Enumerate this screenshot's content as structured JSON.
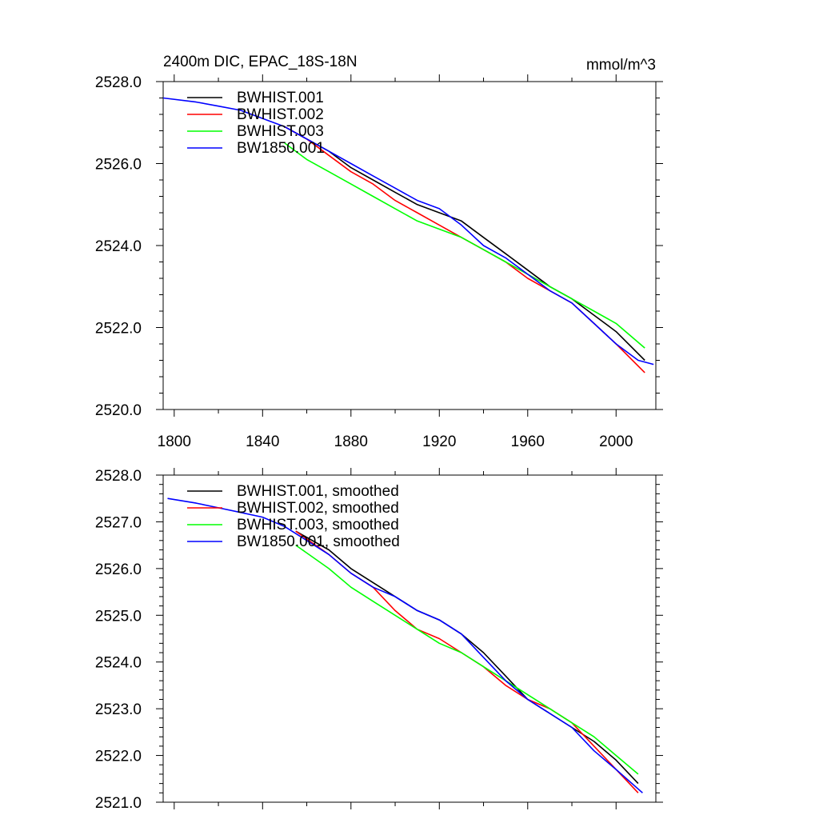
{
  "title_left": "2400m DIC, EPAC_18S-18N",
  "title_right": "mmol/m^3",
  "colors": {
    "BWHIST.001": "#000000",
    "BWHIST.002": "#ff0000",
    "BWHIST.003": "#00ff00",
    "BW1850.001": "#0000ff"
  },
  "chart_data": [
    {
      "type": "line",
      "title": "2400m DIC, EPAC_18S-18N",
      "units": "mmol/m^3",
      "xlim": [
        1795,
        2018
      ],
      "ylim": [
        2520.0,
        2528.0
      ],
      "x_ticks": [
        1800,
        1840,
        1880,
        1920,
        1960,
        2000
      ],
      "x_tick_labels": [
        "1800",
        "1840",
        "1880",
        "1920",
        "1960",
        "2000"
      ],
      "y_ticks": [
        2520.0,
        2522.0,
        2524.0,
        2526.0,
        2528.0
      ],
      "y_tick_labels": [
        "2520.0",
        "2522.0",
        "2524.0",
        "2526.0",
        "2528.0"
      ],
      "legend_position": "top-left",
      "grid": false,
      "series": [
        {
          "name": "BWHIST.001",
          "x": [
            1850,
            1860,
            1870,
            1880,
            1890,
            1900,
            1910,
            1920,
            1930,
            1940,
            1950,
            1960,
            1970,
            1980,
            1990,
            2000,
            2013
          ],
          "values": [
            2526.9,
            2526.6,
            2526.3,
            2525.9,
            2525.6,
            2525.3,
            2525.0,
            2524.8,
            2524.6,
            2524.2,
            2523.8,
            2523.4,
            2523.0,
            2522.7,
            2522.3,
            2521.9,
            2521.2
          ]
        },
        {
          "name": "BWHIST.002",
          "x": [
            1850,
            1860,
            1870,
            1880,
            1890,
            1900,
            1910,
            1920,
            1930,
            1940,
            1950,
            1960,
            1970,
            1980,
            1990,
            2000,
            2013
          ],
          "values": [
            2526.9,
            2526.6,
            2526.2,
            2525.8,
            2525.5,
            2525.1,
            2524.8,
            2524.5,
            2524.2,
            2523.9,
            2523.6,
            2523.2,
            2522.9,
            2522.6,
            2522.1,
            2521.6,
            2520.9
          ]
        },
        {
          "name": "BWHIST.003",
          "x": [
            1850,
            1860,
            1870,
            1880,
            1890,
            1900,
            1910,
            1920,
            1930,
            1940,
            1950,
            1960,
            1970,
            1980,
            1990,
            2000,
            2013
          ],
          "values": [
            2526.5,
            2526.1,
            2525.8,
            2525.5,
            2525.2,
            2524.9,
            2524.6,
            2524.4,
            2524.2,
            2523.9,
            2523.6,
            2523.3,
            2523.0,
            2522.7,
            2522.4,
            2522.1,
            2521.5
          ]
        },
        {
          "name": "BW1850.001",
          "x": [
            1795,
            1810,
            1820,
            1830,
            1840,
            1850,
            1860,
            1870,
            1880,
            1890,
            1900,
            1910,
            1920,
            1930,
            1940,
            1950,
            1960,
            1970,
            1980,
            1990,
            2000,
            2010,
            2017
          ],
          "values": [
            2527.6,
            2527.5,
            2527.4,
            2527.3,
            2527.1,
            2526.9,
            2526.6,
            2526.3,
            2526.0,
            2525.7,
            2525.4,
            2525.1,
            2524.9,
            2524.5,
            2524.0,
            2523.7,
            2523.3,
            2522.9,
            2522.6,
            2522.1,
            2521.6,
            2521.2,
            2521.1
          ]
        }
      ]
    },
    {
      "type": "line",
      "xlim": [
        1795,
        2018
      ],
      "ylim": [
        2521.0,
        2528.0
      ],
      "x_ticks": [
        1800,
        1840,
        1880,
        1920,
        1960,
        2000
      ],
      "y_ticks": [
        2521.0,
        2522.0,
        2523.0,
        2524.0,
        2525.0,
        2526.0,
        2527.0,
        2528.0
      ],
      "y_tick_labels": [
        "2521.0",
        "2522.0",
        "2523.0",
        "2524.0",
        "2525.0",
        "2526.0",
        "2527.0",
        "2528.0"
      ],
      "legend_position": "top-left",
      "grid": false,
      "series": [
        {
          "name": "BWHIST.001, smoothed",
          "x": [
            1855,
            1870,
            1880,
            1890,
            1900,
            1910,
            1920,
            1930,
            1940,
            1950,
            1960,
            1970,
            1980,
            1990,
            2000,
            2010
          ],
          "values": [
            2526.8,
            2526.4,
            2526.0,
            2525.7,
            2525.4,
            2525.1,
            2524.9,
            2524.6,
            2524.2,
            2523.7,
            2523.2,
            2522.9,
            2522.6,
            2522.3,
            2521.9,
            2521.4
          ]
        },
        {
          "name": "BWHIST.002, smoothed",
          "x": [
            1855,
            1870,
            1880,
            1890,
            1900,
            1910,
            1920,
            1930,
            1940,
            1950,
            1960,
            1970,
            1980,
            1990,
            2000,
            2010
          ],
          "values": [
            2526.8,
            2526.3,
            2525.9,
            2525.6,
            2525.1,
            2524.7,
            2524.5,
            2524.2,
            2523.9,
            2523.5,
            2523.2,
            2523.0,
            2522.7,
            2522.2,
            2521.7,
            2521.2
          ]
        },
        {
          "name": "BWHIST.003, smoothed",
          "x": [
            1855,
            1870,
            1880,
            1890,
            1900,
            1910,
            1920,
            1930,
            1940,
            1950,
            1960,
            1970,
            1980,
            1990,
            2000,
            2010
          ],
          "values": [
            2526.5,
            2526.0,
            2525.6,
            2525.3,
            2525.0,
            2524.7,
            2524.4,
            2524.2,
            2523.9,
            2523.6,
            2523.3,
            2523.0,
            2522.7,
            2522.4,
            2522.0,
            2521.6
          ]
        },
        {
          "name": "BW1850.001, smoothed",
          "x": [
            1797,
            1810,
            1820,
            1830,
            1840,
            1850,
            1860,
            1870,
            1880,
            1890,
            1900,
            1910,
            1920,
            1930,
            1940,
            1950,
            1960,
            1970,
            1980,
            1990,
            2000,
            2012
          ],
          "values": [
            2527.5,
            2527.4,
            2527.3,
            2527.2,
            2527.1,
            2526.9,
            2526.6,
            2526.3,
            2525.9,
            2525.6,
            2525.4,
            2525.1,
            2524.9,
            2524.6,
            2524.1,
            2523.6,
            2523.2,
            2522.9,
            2522.6,
            2522.1,
            2521.7,
            2521.2
          ]
        }
      ]
    }
  ]
}
